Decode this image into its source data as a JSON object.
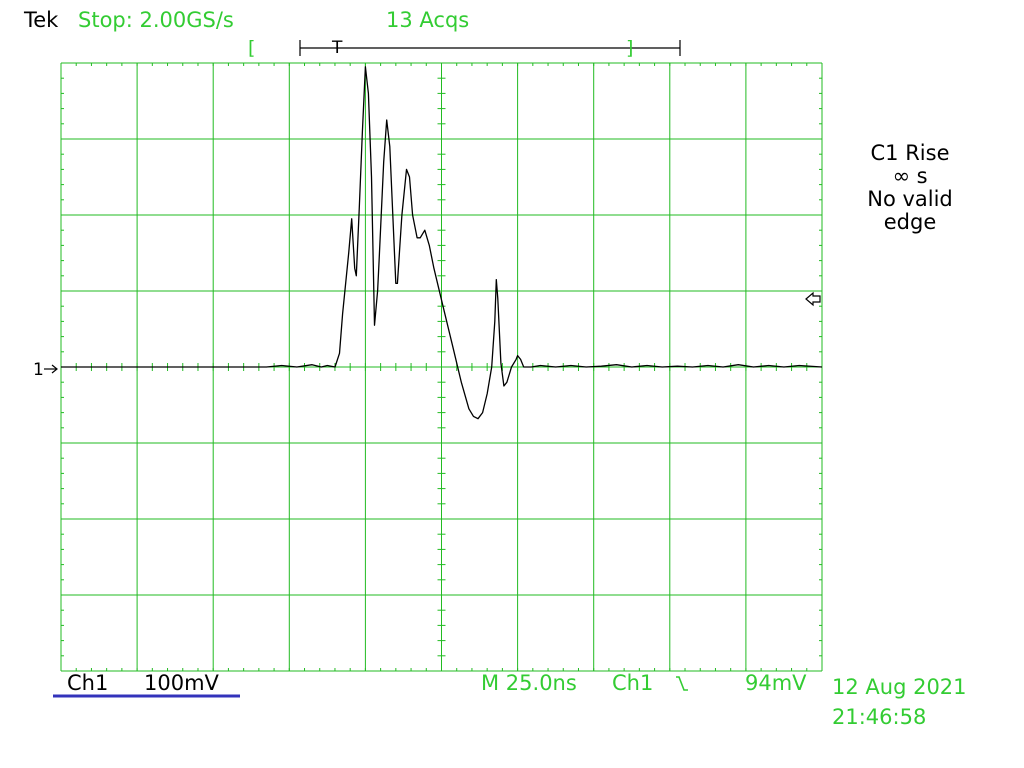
{
  "header": {
    "brand": "Tek",
    "acq_status": "Stop: 2.00GS/s",
    "acq_count": "13 Acqs"
  },
  "measurement": {
    "line1": "C1 Rise",
    "line2": "∞ s",
    "line3": "No valid",
    "line4": "edge"
  },
  "footer": {
    "channel": "Ch1",
    "volts_per_div": "100mV",
    "horizontal": "M 25.0ns",
    "trigger_source": "Ch1",
    "trigger_slope_icon": "falling-edge-icon",
    "trigger_level": "94mV",
    "date": "12 Aug 2021",
    "time": "21:46:58"
  },
  "markers": {
    "channel_ground": "1",
    "trigger_position": "T"
  },
  "colors": {
    "ui_text": "#33cc33",
    "graticule": "#22bb22",
    "trace": "#000000",
    "channel_underline": "#3333bb"
  },
  "chart_data": {
    "type": "line",
    "title": "",
    "xlabel": "",
    "ylabel": "",
    "x_units": "ns",
    "y_units": "mV",
    "xlim": [
      -127.5,
      122.5
    ],
    "ylim": [
      -400,
      400
    ],
    "grid": true,
    "series": [
      {
        "values_xy": [
          [
            -127.5,
            0
          ],
          [
            -60,
            0
          ],
          [
            -55,
            2
          ],
          [
            -50,
            0
          ],
          [
            -45,
            3
          ],
          [
            -42,
            0
          ],
          [
            -40,
            2
          ],
          [
            -37.5,
            0
          ],
          [
            -36,
            18
          ],
          [
            -35,
            70
          ],
          [
            -33,
            150
          ],
          [
            -32,
            195
          ],
          [
            -31,
            130
          ],
          [
            -30.5,
            120
          ],
          [
            -29.5,
            210
          ],
          [
            -28.5,
            310
          ],
          [
            -27.5,
            395
          ],
          [
            -26.5,
            360
          ],
          [
            -25.5,
            250
          ],
          [
            -24.5,
            55
          ],
          [
            -23.5,
            100
          ],
          [
            -23,
            140
          ],
          [
            -21.5,
            270
          ],
          [
            -20.5,
            325
          ],
          [
            -19.5,
            290
          ],
          [
            -18.5,
            200
          ],
          [
            -17.5,
            110
          ],
          [
            -17,
            110
          ],
          [
            -15.5,
            200
          ],
          [
            -14,
            260
          ],
          [
            -13,
            250
          ],
          [
            -12,
            200
          ],
          [
            -10.5,
            170
          ],
          [
            -9.5,
            170
          ],
          [
            -8,
            180
          ],
          [
            -6.5,
            160
          ],
          [
            -5,
            130
          ],
          [
            -2,
            80
          ],
          [
            1,
            30
          ],
          [
            4,
            -20
          ],
          [
            6.5,
            -55
          ],
          [
            8,
            -65
          ],
          [
            9.5,
            -68
          ],
          [
            11,
            -60
          ],
          [
            12.5,
            -35
          ],
          [
            14,
            0
          ],
          [
            15,
            60
          ],
          [
            15.5,
            115
          ],
          [
            16,
            90
          ],
          [
            17,
            5
          ],
          [
            18,
            -25
          ],
          [
            19,
            -20
          ],
          [
            20.5,
            0
          ],
          [
            22,
            10
          ],
          [
            22.5,
            15
          ],
          [
            23.5,
            10
          ],
          [
            24.5,
            0
          ],
          [
            27,
            0
          ],
          [
            30,
            2
          ],
          [
            35,
            0
          ],
          [
            40,
            2
          ],
          [
            45,
            0
          ],
          [
            50,
            1
          ],
          [
            55,
            3
          ],
          [
            60,
            0
          ],
          [
            65,
            2
          ],
          [
            70,
            0
          ],
          [
            75,
            1
          ],
          [
            80,
            0
          ],
          [
            85,
            2
          ],
          [
            90,
            0
          ],
          [
            95,
            3
          ],
          [
            100,
            0
          ],
          [
            105,
            2
          ],
          [
            110,
            0
          ],
          [
            115,
            2
          ],
          [
            122.5,
            0
          ]
        ]
      }
    ]
  }
}
